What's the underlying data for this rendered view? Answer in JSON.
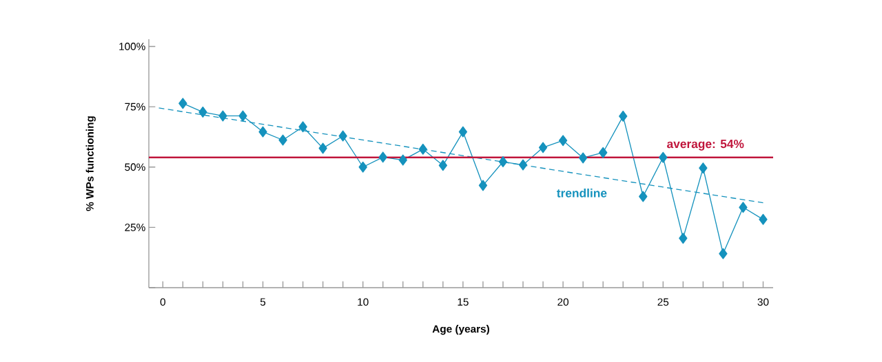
{
  "chart_data": {
    "type": "line",
    "xlabel": "Age (years)",
    "ylabel": "% WPs functioning",
    "xlim": [
      -0.7,
      30.5
    ],
    "xticks": [
      0,
      5,
      10,
      15,
      20,
      25,
      30
    ],
    "ylim": [
      0,
      103
    ],
    "yticks": [
      {
        "value": 0,
        "label": null
      },
      {
        "value": 25,
        "label": "25%"
      },
      {
        "value": 50,
        "label": "50%"
      },
      {
        "value": 75,
        "label": "75%"
      },
      {
        "value": 100,
        "label": "100%"
      }
    ],
    "grid": false,
    "series": [
      {
        "color": "#1592bd",
        "marker": "diamond",
        "line_style": "solid",
        "x": [
          1,
          2,
          3,
          4,
          5,
          6,
          7,
          8,
          9,
          10,
          11,
          12,
          13,
          14,
          15,
          16,
          17,
          18,
          19,
          20,
          21,
          22,
          23,
          24,
          25,
          26,
          27,
          28,
          29,
          30
        ],
        "values": [
          76.4,
          72.8,
          71.2,
          71.2,
          64.6,
          61.2,
          66.7,
          57.8,
          62.9,
          50,
          54.1,
          52.9,
          57.4,
          50.7,
          64.6,
          42.4,
          52.2,
          50.9,
          58.1,
          61,
          53.8,
          56,
          71.1,
          37.8,
          54,
          20.5,
          49.6,
          14.1,
          33.3,
          28.3
        ]
      },
      {
        "name": "trendline",
        "color": "#1592bd",
        "marker": "none",
        "line_style": "dashed",
        "x": [
          -0.2,
          30
        ],
        "values": [
          74.5,
          35.2
        ]
      }
    ],
    "ref_lines": [
      {
        "axis": "y",
        "value": 54,
        "label": "average: 54%",
        "color": "#c0163c",
        "line_style": "solid"
      }
    ]
  }
}
